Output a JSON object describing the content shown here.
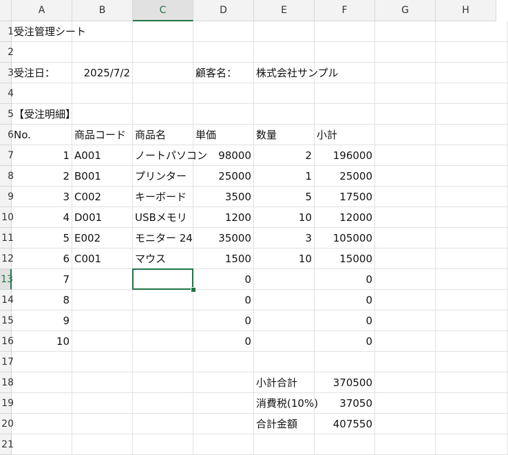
{
  "columns": [
    "A",
    "B",
    "C",
    "D",
    "E",
    "F",
    "G",
    "H"
  ],
  "row_numbers": [
    "1",
    "2",
    "3",
    "4",
    "5",
    "6",
    "7",
    "8",
    "9",
    "10",
    "11",
    "12",
    "13",
    "14",
    "15",
    "16",
    "17",
    "18",
    "19",
    "20",
    "21"
  ],
  "selected_cell": "C13",
  "accent_color": "#217346",
  "cells": [
    [
      {
        "v": "受注管理シート"
      }
    ],
    [],
    [
      {
        "v": "受注日："
      },
      {
        "v": "2025/7/2",
        "a": "r"
      },
      null,
      {
        "v": "顧客名："
      },
      {
        "v": "株式会社サンプル"
      }
    ],
    [],
    [
      {
        "v": "【受注明細】"
      }
    ],
    [
      {
        "v": "No."
      },
      {
        "v": "商品コード"
      },
      {
        "v": "商品名"
      },
      {
        "v": "単価"
      },
      {
        "v": "数量"
      },
      {
        "v": "小計"
      }
    ],
    [
      {
        "v": "1",
        "a": "r"
      },
      {
        "v": "A001"
      },
      {
        "v": "ノートパソコン"
      },
      {
        "v": "98000",
        "a": "r"
      },
      {
        "v": "2",
        "a": "r"
      },
      {
        "v": "196000",
        "a": "r"
      }
    ],
    [
      {
        "v": "2",
        "a": "r"
      },
      {
        "v": "B001"
      },
      {
        "v": "プリンター"
      },
      {
        "v": "25000",
        "a": "r"
      },
      {
        "v": "1",
        "a": "r"
      },
      {
        "v": "25000",
        "a": "r"
      }
    ],
    [
      {
        "v": "3",
        "a": "r"
      },
      {
        "v": "C002"
      },
      {
        "v": "キーボード"
      },
      {
        "v": "3500",
        "a": "r"
      },
      {
        "v": "5",
        "a": "r"
      },
      {
        "v": "17500",
        "a": "r"
      }
    ],
    [
      {
        "v": "4",
        "a": "r"
      },
      {
        "v": "D001"
      },
      {
        "v": "USBメモリ"
      },
      {
        "v": "1200",
        "a": "r"
      },
      {
        "v": "10",
        "a": "r"
      },
      {
        "v": "12000",
        "a": "r"
      }
    ],
    [
      {
        "v": "5",
        "a": "r"
      },
      {
        "v": "E002"
      },
      {
        "v": "モニター 24"
      },
      {
        "v": "35000",
        "a": "r"
      },
      {
        "v": "3",
        "a": "r"
      },
      {
        "v": "105000",
        "a": "r"
      }
    ],
    [
      {
        "v": "6",
        "a": "r"
      },
      {
        "v": "C001"
      },
      {
        "v": "マウス"
      },
      {
        "v": "1500",
        "a": "r"
      },
      {
        "v": "10",
        "a": "r"
      },
      {
        "v": "15000",
        "a": "r"
      }
    ],
    [
      {
        "v": "7",
        "a": "r"
      },
      null,
      null,
      {
        "v": "0",
        "a": "r"
      },
      null,
      {
        "v": "0",
        "a": "r"
      }
    ],
    [
      {
        "v": "8",
        "a": "r"
      },
      null,
      null,
      {
        "v": "0",
        "a": "r"
      },
      null,
      {
        "v": "0",
        "a": "r"
      }
    ],
    [
      {
        "v": "9",
        "a": "r"
      },
      null,
      null,
      {
        "v": "0",
        "a": "r"
      },
      null,
      {
        "v": "0",
        "a": "r"
      }
    ],
    [
      {
        "v": "10",
        "a": "r"
      },
      null,
      null,
      {
        "v": "0",
        "a": "r"
      },
      null,
      {
        "v": "0",
        "a": "r"
      }
    ],
    [],
    [
      null,
      null,
      null,
      null,
      {
        "v": "小計合計"
      },
      {
        "v": "370500",
        "a": "r"
      }
    ],
    [
      null,
      null,
      null,
      null,
      {
        "v": "消費税(10%)"
      },
      {
        "v": "37050",
        "a": "r"
      }
    ],
    [
      null,
      null,
      null,
      null,
      {
        "v": "合計金額"
      },
      {
        "v": "407550",
        "a": "r"
      }
    ],
    []
  ]
}
